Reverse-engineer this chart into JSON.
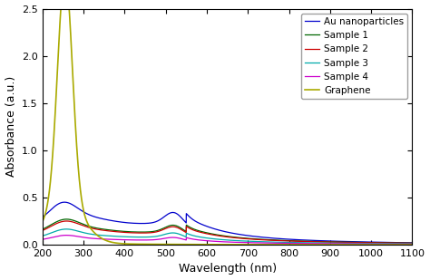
{
  "xlabel": "Wavelength (nm)",
  "ylabel": "Absorbance (a.u.)",
  "xlim": [
    200,
    1100
  ],
  "ylim": [
    0,
    2.5
  ],
  "yticks": [
    0,
    0.5,
    1.0,
    1.5,
    2.0,
    2.5
  ],
  "xticks": [
    200,
    300,
    400,
    500,
    600,
    700,
    800,
    900,
    1000,
    1100
  ],
  "legend": [
    "Au nanoparticles",
    "Sample 1",
    "Sample 2",
    "Sample 3",
    "Sample 4",
    "Graphene"
  ],
  "colors": [
    "#0000cc",
    "#006600",
    "#cc0000",
    "#00aaaa",
    "#cc00cc",
    "#aaaa00"
  ],
  "background": "#ffffff"
}
